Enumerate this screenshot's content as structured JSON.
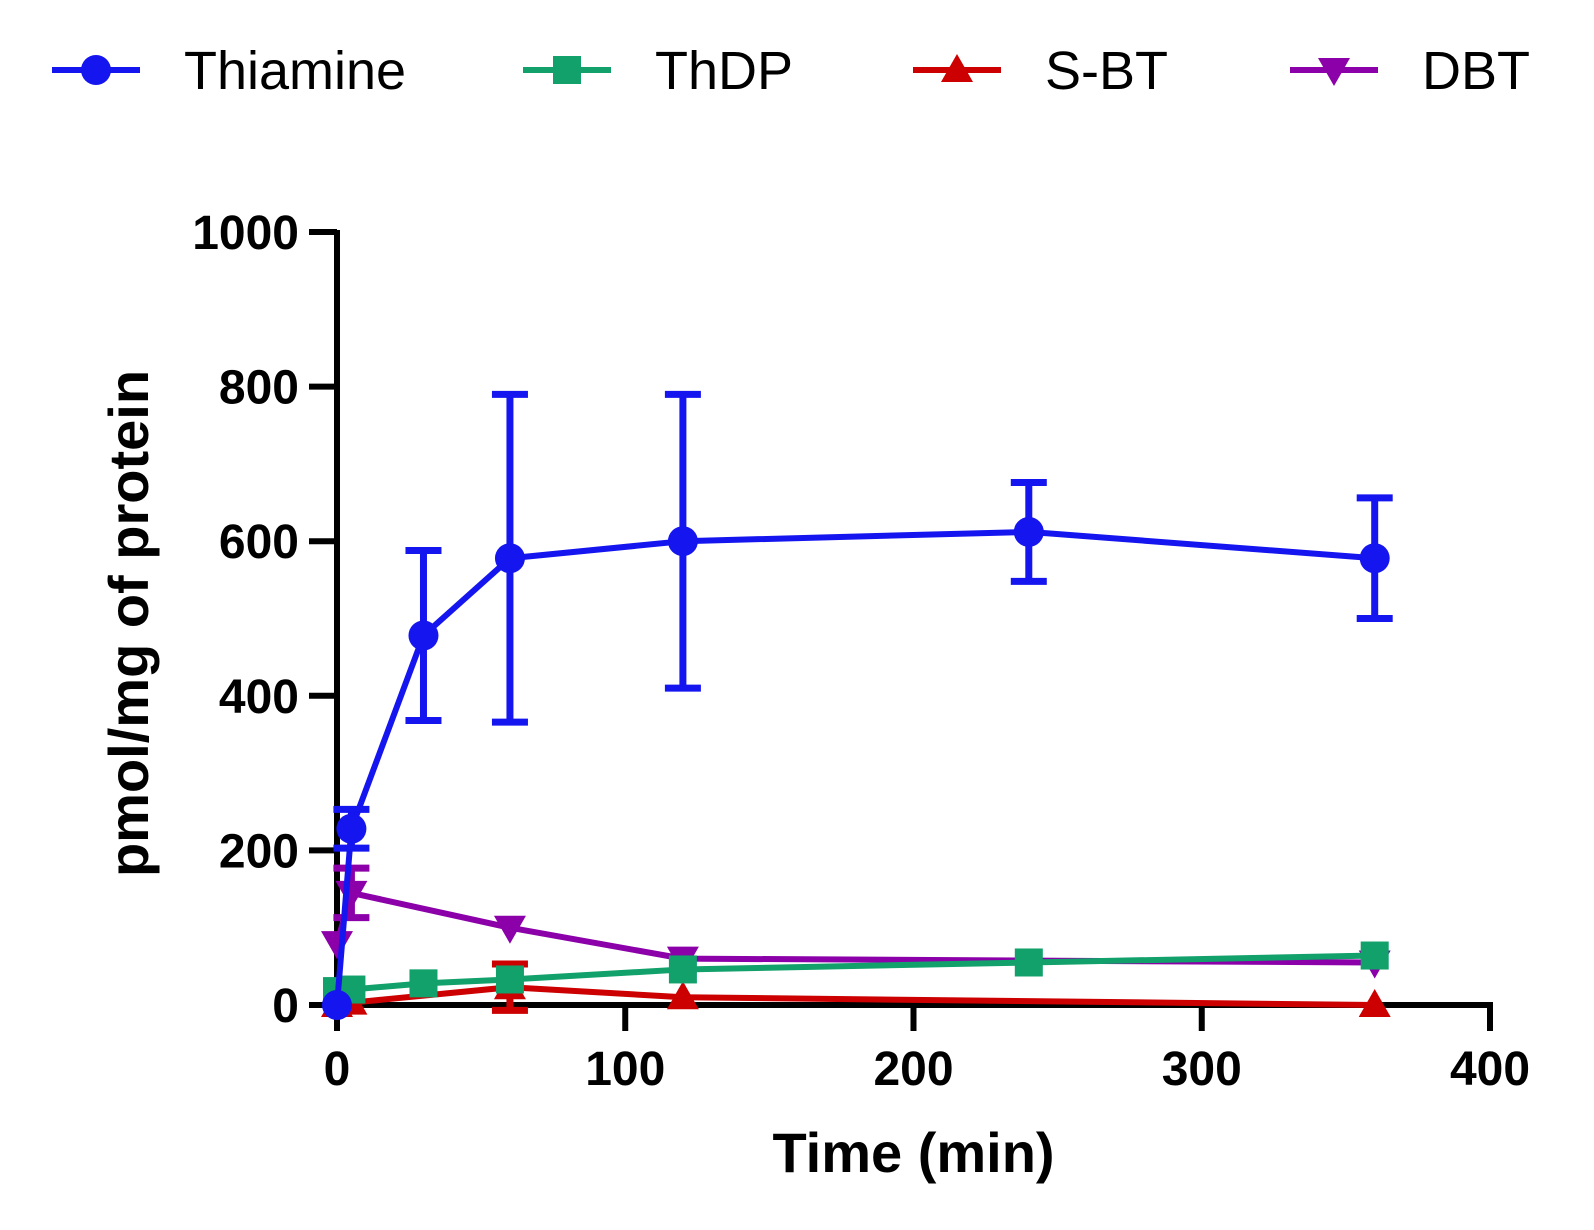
{
  "chart_data": {
    "type": "line",
    "xlabel": "Time (min)",
    "ylabel": "pmol/mg of protein",
    "xlim": [
      0,
      400
    ],
    "ylim": [
      0,
      1000
    ],
    "x_ticks": [
      0,
      100,
      200,
      300,
      400
    ],
    "y_ticks": [
      0,
      200,
      400,
      600,
      800,
      1000
    ],
    "x_tick_labels": [
      "0",
      "100",
      "200",
      "300",
      "400"
    ],
    "y_tick_labels": [
      "0",
      "200",
      "400",
      "600",
      "800",
      "1000"
    ],
    "grid": false,
    "legend_position": "top",
    "series": [
      {
        "name": "Thiamine",
        "color": "#1515f0",
        "marker": "circle",
        "x": [
          0,
          5,
          30,
          60,
          120,
          240,
          360
        ],
        "y": [
          0,
          228,
          478,
          578,
          600,
          612,
          578
        ],
        "err": [
          0,
          25,
          110,
          212,
          190,
          64,
          78
        ]
      },
      {
        "name": "ThDP",
        "color": "#12a06b",
        "marker": "square",
        "x": [
          0,
          5,
          30,
          60,
          120,
          240,
          360
        ],
        "y": [
          18,
          20,
          28,
          33,
          46,
          55,
          64
        ],
        "err": [
          0,
          0,
          0,
          0,
          0,
          0,
          0
        ]
      },
      {
        "name": "S-BT",
        "color": "#cc0000",
        "marker": "triangle-up",
        "x": [
          0,
          5,
          60,
          120,
          360
        ],
        "y": [
          0,
          3,
          23,
          10,
          0
        ],
        "err": [
          0,
          0,
          30,
          0,
          0
        ]
      },
      {
        "name": "DBT",
        "color": "#8b00a8",
        "marker": "triangle-down",
        "x": [
          0,
          5,
          60,
          120,
          360
        ],
        "y": [
          80,
          145,
          100,
          60,
          55
        ],
        "err": [
          0,
          32,
          0,
          0,
          0
        ]
      }
    ]
  }
}
